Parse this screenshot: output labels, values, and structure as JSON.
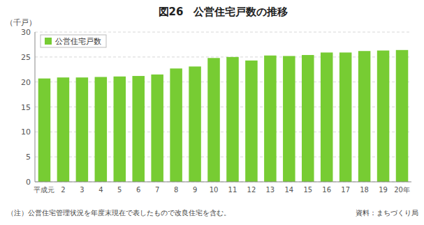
{
  "chart_data": {
    "type": "bar",
    "title": "図26　公営住宅戸数の推移",
    "ylabel": "（千戸）",
    "annotations": [
      "（注）公営住宅管理状況を年度末現在で表したもので改良住宅を含む。",
      "資料：まちづくり局"
    ],
    "categories": [
      "平成元",
      "2",
      "3",
      "4",
      "5",
      "6",
      "7",
      "8",
      "9",
      "10",
      "11",
      "12",
      "13",
      "14",
      "15",
      "16",
      "17",
      "18",
      "19",
      "20年"
    ],
    "series": [
      {
        "name": "公営住宅戸数",
        "color": "#77cc33",
        "values": [
          20.7,
          20.9,
          20.9,
          21.0,
          21.1,
          21.2,
          21.5,
          22.7,
          23.1,
          24.8,
          25.0,
          24.3,
          25.3,
          25.2,
          25.4,
          25.9,
          25.9,
          26.2,
          26.3,
          26.4
        ]
      }
    ],
    "ylim": [
      0,
      30
    ],
    "yticks": [
      0,
      5,
      10,
      15,
      20,
      25,
      30
    ],
    "grid": true,
    "legend": "upper left"
  }
}
